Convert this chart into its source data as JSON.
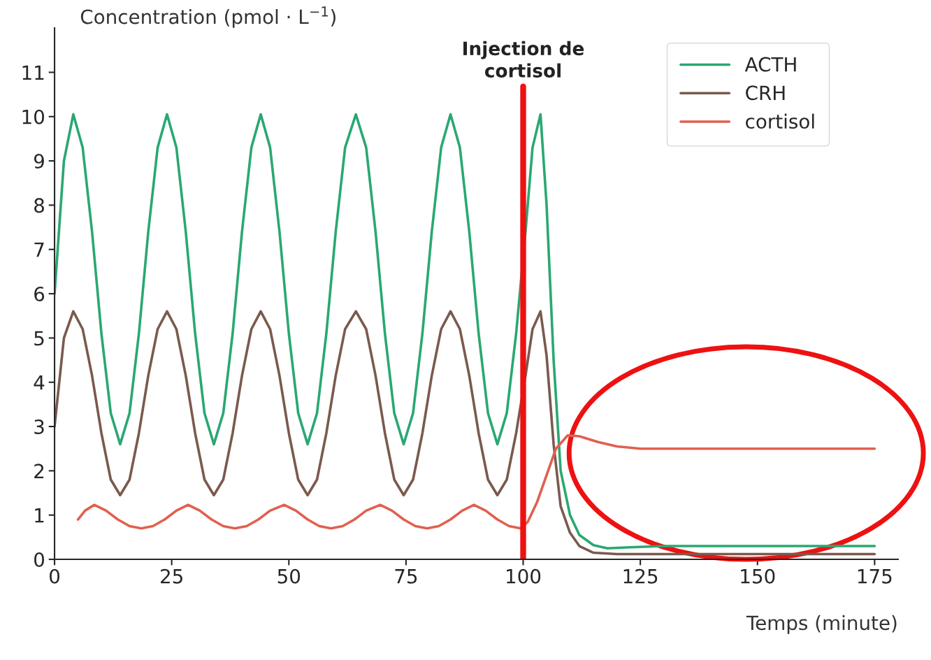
{
  "chart_data": {
    "type": "line",
    "ylabel": "Concentration (pmol · L$^{−1}$)",
    "xlabel": "Temps (minute)",
    "xlim": [
      0,
      180
    ],
    "xticks": [
      0,
      25,
      50,
      75,
      100,
      125,
      150,
      175
    ],
    "ylim": [
      0,
      12
    ],
    "yticks": [
      0,
      1,
      2,
      3,
      4,
      5,
      6,
      7,
      8,
      9,
      10,
      11
    ],
    "grid": false,
    "legend": "top right",
    "marker": "none",
    "line_style": "solid",
    "ref_lines": [
      {
        "axis": "x",
        "value": 100,
        "label": "Injection de\ncortisol",
        "color": "#ee1111"
      }
    ],
    "series": [
      {
        "name": "ACTH",
        "color": "#2aa872",
        "x": [
          0,
          2,
          4,
          6,
          8,
          10,
          12,
          14,
          16,
          18,
          20,
          22,
          24,
          26,
          28,
          30,
          32,
          34,
          36,
          38,
          40,
          42,
          44,
          46,
          48,
          50,
          52,
          54,
          56,
          58,
          60,
          62,
          64.3,
          66.5,
          68.5,
          70.5,
          72.5,
          74.5,
          76.5,
          78.5,
          80.5,
          82.5,
          84.5,
          86.5,
          88.5,
          90.5,
          92.5,
          94.5,
          96.5,
          98.5,
          100.5,
          102,
          103.7,
          105,
          106.5,
          108,
          110,
          112,
          115,
          118,
          122,
          130,
          150,
          175
        ],
        "values": [
          6.0,
          9.0,
          10.05,
          9.3,
          7.4,
          5.1,
          3.3,
          2.6,
          3.3,
          5.1,
          7.4,
          9.3,
          10.05,
          9.3,
          7.4,
          5.1,
          3.3,
          2.6,
          3.3,
          5.1,
          7.4,
          9.3,
          10.05,
          9.3,
          7.4,
          5.1,
          3.3,
          2.6,
          3.3,
          5.1,
          7.4,
          9.3,
          10.05,
          9.3,
          7.4,
          5.1,
          3.3,
          2.6,
          3.3,
          5.1,
          7.4,
          9.3,
          10.05,
          9.3,
          7.4,
          5.1,
          3.3,
          2.6,
          3.3,
          5.1,
          7.4,
          9.3,
          10.05,
          8.0,
          4.5,
          2.0,
          1.0,
          0.55,
          0.32,
          0.25,
          0.27,
          0.3,
          0.3,
          0.3
        ]
      },
      {
        "name": "CRH",
        "color": "#7a5a4e",
        "x": [
          0,
          2,
          4,
          6,
          8,
          10,
          12,
          14,
          16,
          18,
          20,
          22,
          24,
          26,
          28,
          30,
          32,
          34,
          36,
          38,
          40,
          42,
          44,
          46,
          48,
          50,
          52,
          54,
          56,
          58,
          60,
          62,
          64.3,
          66.5,
          68.5,
          70.5,
          72.5,
          74.5,
          76.5,
          78.5,
          80.5,
          82.5,
          84.5,
          86.5,
          88.5,
          90.5,
          92.5,
          94.5,
          96.5,
          98.5,
          100.5,
          102,
          103.7,
          105,
          106.5,
          108,
          110,
          112,
          115,
          120,
          175
        ],
        "values": [
          3.0,
          5.0,
          5.6,
          5.2,
          4.15,
          2.85,
          1.8,
          1.45,
          1.8,
          2.85,
          4.15,
          5.2,
          5.6,
          5.2,
          4.15,
          2.85,
          1.8,
          1.45,
          1.8,
          2.85,
          4.15,
          5.2,
          5.6,
          5.2,
          4.15,
          2.85,
          1.8,
          1.45,
          1.8,
          2.85,
          4.15,
          5.2,
          5.6,
          5.2,
          4.15,
          2.85,
          1.8,
          1.45,
          1.8,
          2.85,
          4.15,
          5.2,
          5.6,
          5.2,
          4.15,
          2.85,
          1.8,
          1.45,
          1.8,
          2.85,
          4.15,
          5.2,
          5.6,
          4.6,
          2.6,
          1.2,
          0.6,
          0.3,
          0.15,
          0.12,
          0.12
        ]
      },
      {
        "name": "cortisol",
        "color": "#e0604f",
        "x": [
          5,
          6.5,
          8.5,
          11,
          13.5,
          16,
          18.5,
          21,
          23.5,
          26,
          28.5,
          31,
          33.5,
          36,
          38.5,
          41,
          43.5,
          46,
          49,
          51.5,
          54,
          56.5,
          59,
          61.5,
          64,
          66.5,
          69.5,
          72,
          74.5,
          77,
          79.5,
          82,
          84.5,
          87,
          89.5,
          92,
          94.5,
          97,
          99.5,
          101,
          103,
          105,
          107,
          109.5,
          112,
          116,
          120,
          125,
          175
        ],
        "values": [
          0.9,
          1.1,
          1.23,
          1.1,
          0.9,
          0.75,
          0.7,
          0.75,
          0.9,
          1.1,
          1.23,
          1.1,
          0.9,
          0.75,
          0.7,
          0.75,
          0.9,
          1.1,
          1.23,
          1.1,
          0.9,
          0.75,
          0.7,
          0.75,
          0.9,
          1.1,
          1.23,
          1.1,
          0.9,
          0.75,
          0.7,
          0.75,
          0.9,
          1.1,
          1.23,
          1.1,
          0.9,
          0.75,
          0.7,
          0.85,
          1.3,
          1.9,
          2.5,
          2.8,
          2.78,
          2.65,
          2.55,
          2.5,
          2.5
        ]
      }
    ]
  }
}
